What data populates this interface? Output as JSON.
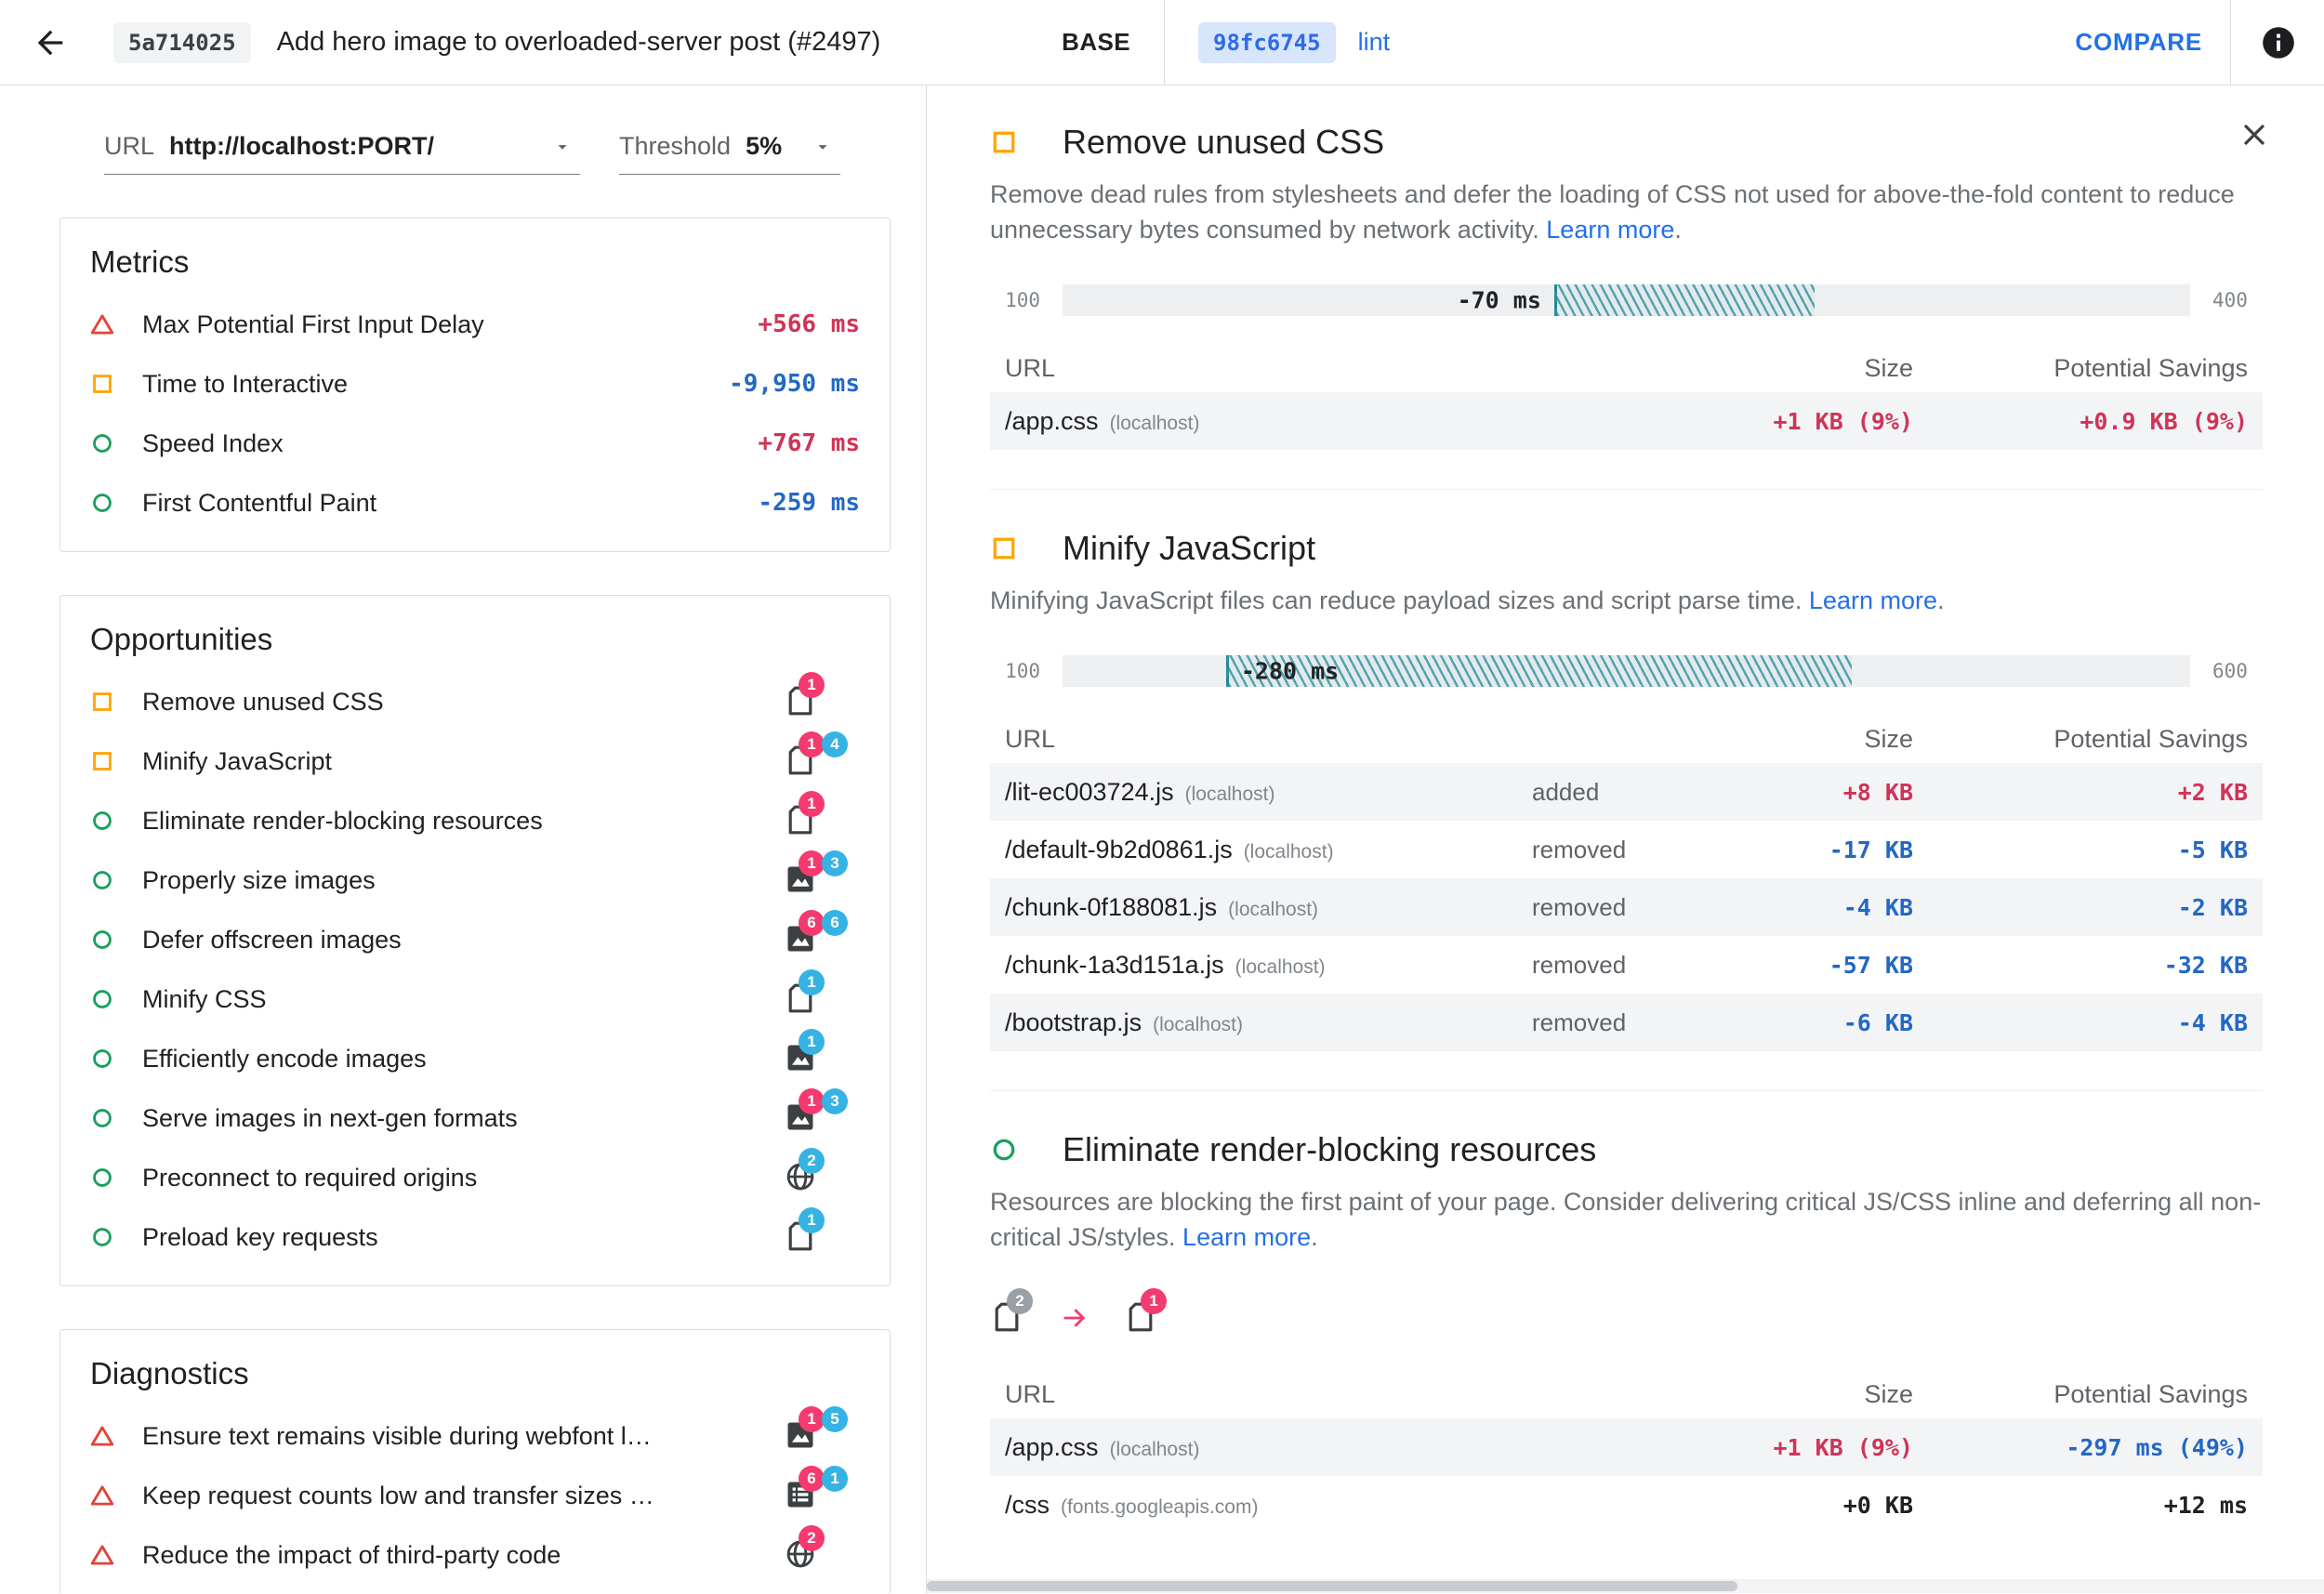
{
  "colors": {
    "accent_blue": "#2470ea",
    "value_worse": "#cf3457",
    "value_better": "#2368c4",
    "badge_worse": "#f43a6f",
    "badge_better": "#36b3e3",
    "badge_neutral": "#9aa0a6",
    "hatch_teal": "#178292",
    "pass_green": "#18a05c",
    "average_orange": "#ffa400",
    "fail_red": "#e0443a"
  },
  "topbar": {
    "base_hash": "5a714025",
    "title": "Add hero image to overloaded-server post (#2497)",
    "base_label": "BASE",
    "compare_hash": "98fc6745",
    "compare_branch": "lint",
    "compare_button": "COMPARE"
  },
  "controls": {
    "url_label": "URL",
    "url_value": "http://localhost:PORT/",
    "threshold_label": "Threshold",
    "threshold_value": "5%"
  },
  "left": {
    "metrics": {
      "title": "Metrics",
      "rows": [
        {
          "state": "fail",
          "label": "Max Potential First Input Delay",
          "value": "+566 ms",
          "dir": "worse"
        },
        {
          "state": "average",
          "label": "Time to Interactive",
          "value": "-9,950 ms",
          "dir": "better"
        },
        {
          "state": "pass",
          "label": "Speed Index",
          "value": "+767 ms",
          "dir": "worse"
        },
        {
          "state": "pass",
          "label": "First Contentful Paint",
          "value": "-259 ms",
          "dir": "better"
        }
      ]
    },
    "opportunities": {
      "title": "Opportunities",
      "rows": [
        {
          "state": "average",
          "label": "Remove unused CSS",
          "resource": "doc",
          "badges": [
            {
              "value": "1",
              "type": "worse"
            }
          ]
        },
        {
          "state": "average",
          "label": "Minify JavaScript",
          "resource": "doc",
          "badges": [
            {
              "value": "1",
              "type": "worse"
            },
            {
              "value": "4",
              "type": "better"
            }
          ]
        },
        {
          "state": "pass",
          "label": "Eliminate render-blocking resources",
          "resource": "doc",
          "badges": [
            {
              "value": "1",
              "type": "worse"
            }
          ]
        },
        {
          "state": "pass",
          "label": "Properly size images",
          "resource": "img",
          "badges": [
            {
              "value": "1",
              "type": "worse"
            },
            {
              "value": "3",
              "type": "better"
            }
          ]
        },
        {
          "state": "pass",
          "label": "Defer offscreen images",
          "resource": "img",
          "badges": [
            {
              "value": "6",
              "type": "worse"
            },
            {
              "value": "6",
              "type": "better"
            }
          ]
        },
        {
          "state": "pass",
          "label": "Minify CSS",
          "resource": "doc",
          "badges": [
            {
              "value": "1",
              "type": "better"
            }
          ]
        },
        {
          "state": "pass",
          "label": "Efficiently encode images",
          "resource": "img",
          "badges": [
            {
              "value": "1",
              "type": "better"
            }
          ]
        },
        {
          "state": "pass",
          "label": "Serve images in next-gen formats",
          "resource": "img",
          "badges": [
            {
              "value": "1",
              "type": "worse"
            },
            {
              "value": "3",
              "type": "better"
            }
          ]
        },
        {
          "state": "pass",
          "label": "Preconnect to required origins",
          "resource": "globe",
          "badges": [
            {
              "value": "2",
              "type": "better"
            }
          ]
        },
        {
          "state": "pass",
          "label": "Preload key requests",
          "resource": "doc",
          "badges": [
            {
              "value": "1",
              "type": "better"
            }
          ]
        }
      ]
    },
    "diagnostics": {
      "title": "Diagnostics",
      "rows": [
        {
          "state": "fail",
          "label": "Ensure text remains visible during webfont l…",
          "resource": "img",
          "badges": [
            {
              "value": "1",
              "type": "worse"
            },
            {
              "value": "5",
              "type": "better"
            }
          ]
        },
        {
          "state": "fail",
          "label": "Keep request counts low and transfer sizes …",
          "resource": "list",
          "badges": [
            {
              "value": "6",
              "type": "worse"
            },
            {
              "value": "1",
              "type": "better"
            }
          ]
        },
        {
          "state": "fail",
          "label": "Reduce the impact of third-party code",
          "resource": "globe",
          "badges": [
            {
              "value": "2",
              "type": "worse"
            }
          ]
        }
      ]
    }
  },
  "details": {
    "sections": [
      {
        "state": "average",
        "title": "Remove unused CSS",
        "description": "Remove dead rules from stylesheets and defer the loading of CSS not used for above-the-fold content to reduce unnecessary bytes consumed by network activity.",
        "learn_more": "Learn more",
        "chart": {
          "axis_min": "100",
          "axis_max": "400",
          "delta": "-70 ms",
          "hatch_start": 43.6,
          "hatch_end": 66.7,
          "label_pos": "before"
        },
        "table": {
          "columns": [
            "URL",
            "Size",
            "Potential Savings"
          ],
          "rows": [
            {
              "url": "/app.css",
              "host": "(localhost)",
              "change": "",
              "size": "+1 KB (9%)",
              "size_dir": "worse",
              "savings": "+0.9 KB (9%)",
              "savings_dir": "worse"
            }
          ]
        }
      },
      {
        "state": "average",
        "title": "Minify JavaScript",
        "description": "Minifying JavaScript files can reduce payload sizes and script parse time.",
        "learn_more": "Learn more",
        "chart": {
          "axis_min": "100",
          "axis_max": "600",
          "delta": "-280 ms",
          "hatch_start": 14.5,
          "hatch_end": 70.0,
          "label_pos": "inside"
        },
        "table": {
          "columns": [
            "URL",
            "Size",
            "Potential Savings"
          ],
          "rows": [
            {
              "url": "/lit-ec003724.js",
              "host": "(localhost)",
              "change": "added",
              "size": "+8 KB",
              "size_dir": "worse",
              "savings": "+2 KB",
              "savings_dir": "worse"
            },
            {
              "url": "/default-9b2d0861.js",
              "host": "(localhost)",
              "change": "removed",
              "size": "-17 KB",
              "size_dir": "better",
              "savings": "-5 KB",
              "savings_dir": "better"
            },
            {
              "url": "/chunk-0f188081.js",
              "host": "(localhost)",
              "change": "removed",
              "size": "-4 KB",
              "size_dir": "better",
              "savings": "-2 KB",
              "savings_dir": "better"
            },
            {
              "url": "/chunk-1a3d151a.js",
              "host": "(localhost)",
              "change": "removed",
              "size": "-57 KB",
              "size_dir": "better",
              "savings": "-32 KB",
              "savings_dir": "better"
            },
            {
              "url": "/bootstrap.js",
              "host": "(localhost)",
              "change": "removed",
              "size": "-6 KB",
              "size_dir": "better",
              "savings": "-4 KB",
              "savings_dir": "better"
            }
          ]
        }
      },
      {
        "state": "pass",
        "title": "Eliminate render-blocking resources",
        "description": "Resources are blocking the first paint of your page. Consider delivering critical JS/CSS inline and deferring all non-critical JS/styles.",
        "learn_more": "Learn more",
        "flow": {
          "from_badge": "2",
          "from_type": "neutral",
          "to_badge": "1",
          "to_type": "worse"
        },
        "table": {
          "columns": [
            "URL",
            "Size",
            "Potential Savings"
          ],
          "rows": [
            {
              "url": "/app.css",
              "host": "(localhost)",
              "change": "",
              "size": "+1 KB (9%)",
              "size_dir": "worse",
              "savings": "-297 ms (49%)",
              "savings_dir": "better"
            },
            {
              "url": "/css",
              "host": "(fonts.googleapis.com)",
              "change": "",
              "size": "+0 KB",
              "size_dir": "neutral",
              "savings": "+12 ms",
              "savings_dir": "neutral"
            }
          ]
        }
      }
    ]
  }
}
